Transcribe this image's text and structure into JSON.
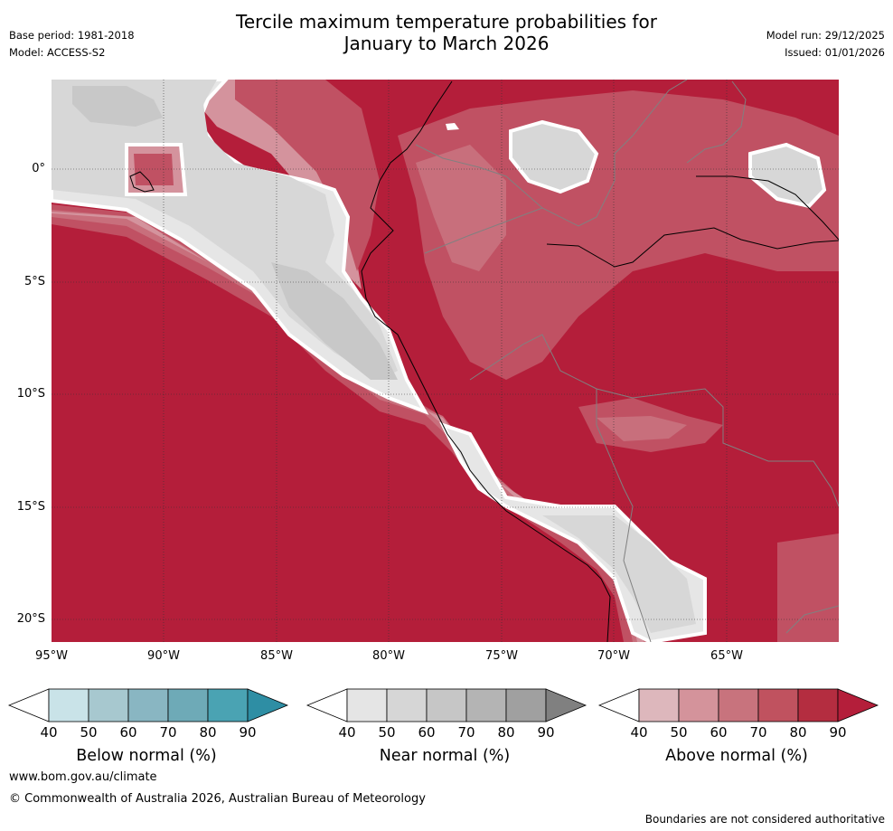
{
  "header": {
    "title_line1": "Tercile maximum temperature probabilities for",
    "title_line2": "January to March 2026",
    "base_period": "Base period: 1981-2018",
    "model": "Model: ACCESS-S2",
    "model_run": "Model run: 29/12/2025",
    "issued": "Issued: 01/01/2026"
  },
  "map": {
    "lat_labels": [
      "0°",
      "5°S",
      "10°S",
      "15°S",
      "20°S"
    ],
    "lon_labels": [
      "95°W",
      "90°W",
      "85°W",
      "80°W",
      "75°W",
      "70°W",
      "65°W"
    ],
    "colors": {
      "above_40": "#ddb3b9",
      "above_50": "#d4939d",
      "above_60": "#c86f7c",
      "above_70": "#c05163",
      "above_80": "#b41e3a",
      "near_40": "#e6e6e6",
      "near_50": "#d7d7d7",
      "near_60": "#c8c8c8",
      "coast": "#000000",
      "border": "#808080"
    }
  },
  "legends": [
    {
      "label": "Below normal (%)",
      "ticks": [
        "40",
        "50",
        "60",
        "70",
        "80",
        "90"
      ],
      "colors": [
        "#ffffff",
        "#c9e3e8",
        "#a7c8cf",
        "#89b6c2",
        "#6eaab7",
        "#4aa3b3",
        "#2e8ea4"
      ]
    },
    {
      "label": "Near normal (%)",
      "ticks": [
        "40",
        "50",
        "60",
        "70",
        "80",
        "90"
      ],
      "colors": [
        "#ffffff",
        "#e5e5e5",
        "#d6d6d6",
        "#c6c6c6",
        "#b4b4b4",
        "#a0a0a0",
        "#808080"
      ]
    },
    {
      "label": "Above normal (%)",
      "ticks": [
        "40",
        "50",
        "60",
        "70",
        "80",
        "90"
      ],
      "colors": [
        "#ffffff",
        "#ddb7bc",
        "#d4939b",
        "#c8737d",
        "#c0525f",
        "#b42d40",
        "#b41e3a"
      ]
    }
  ],
  "footer": {
    "website": "www.bom.gov.au/climate",
    "copyright": "© Commonwealth of Australia 2026, Australian Bureau of Meteorology",
    "disclaimer": "Boundaries are not considered authoritative"
  }
}
